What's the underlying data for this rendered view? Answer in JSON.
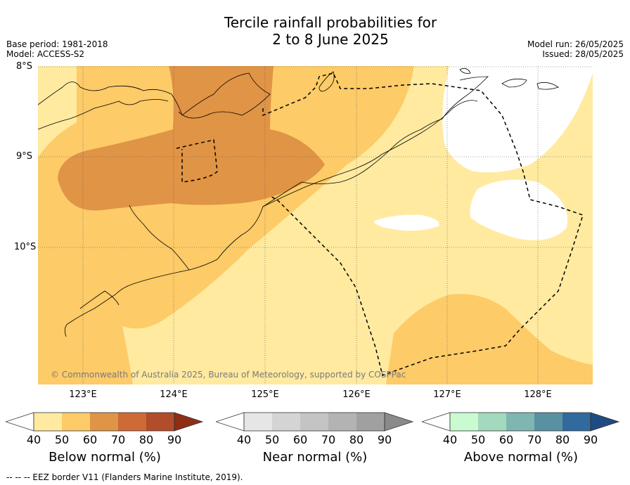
{
  "title": {
    "line1": "Tercile rainfall probabilities for",
    "line2": "2 to 8 June 2025"
  },
  "meta": {
    "base_period": "Base period: 1981-2018",
    "model": "Model: ACCESS-S2",
    "model_run": "Model run: 26/05/2025",
    "issued": "Issued: 28/05/2025"
  },
  "axes": {
    "lat_labels": [
      "8°S",
      "9°S",
      "10°S"
    ],
    "lon_labels": [
      "123°E",
      "124°E",
      "125°E",
      "126°E",
      "127°E",
      "128°E"
    ]
  },
  "colors": {
    "below": [
      "#ffeaa0",
      "#fdcb67",
      "#e09445",
      "#ce6a35",
      "#b14d2a",
      "#8e2e15"
    ],
    "near": [
      "#e6e6e6",
      "#d4d4d4",
      "#c4c4c4",
      "#b3b3b3",
      "#a0a0a0",
      "#8a8a8a"
    ],
    "above": [
      "#c9fad0",
      "#a3d9bd",
      "#7fb6b1",
      "#5891a1",
      "#306a9e",
      "#1e4b82"
    ]
  },
  "colorbars": [
    {
      "label": "Below normal (%)",
      "ticks": [
        "40",
        "50",
        "60",
        "70",
        "80",
        "90"
      ]
    },
    {
      "label": "Near normal (%)",
      "ticks": [
        "40",
        "50",
        "60",
        "70",
        "80",
        "90"
      ]
    },
    {
      "label": "Above normal (%)",
      "ticks": [
        "40",
        "50",
        "60",
        "70",
        "80",
        "90"
      ]
    }
  ],
  "copyright": "© Commonwealth of Australia 2025, Bureau of Meteorology, supported by COSPPac",
  "footnote": "--  --  -- EEZ border V11 (Flanders Marine Institute, 2019)."
}
